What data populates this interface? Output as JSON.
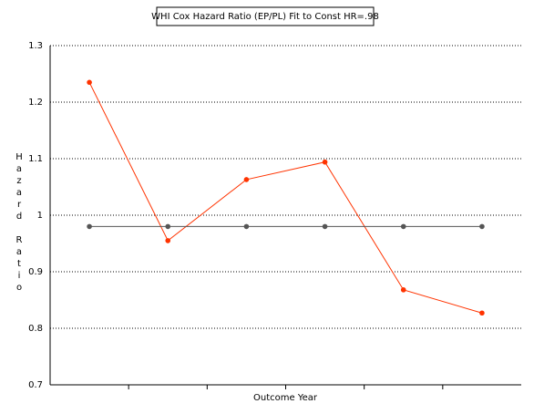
{
  "chart_data": {
    "type": "line",
    "title": "WHI Cox Hazard Ratio (EP/PL) Fit to Const HR=.98",
    "x_label": "Outcome Year",
    "y_label": "Hazard Ratio",
    "categories": [
      null,
      null,
      null,
      null,
      null,
      null
    ],
    "series": [
      {
        "color": "#ff3300",
        "values": [
          1.235,
          0.955,
          1.063,
          1.094,
          0.868,
          0.827
        ]
      },
      {
        "color": "#555555",
        "values": [
          0.98,
          0.98,
          0.98,
          0.98,
          0.98,
          0.98
        ]
      }
    ],
    "ylim": [
      0.7,
      1.3
    ],
    "yticks": [
      0.7,
      0.8,
      0.9,
      1,
      1.1,
      1.2,
      1.3
    ],
    "grid": true
  }
}
